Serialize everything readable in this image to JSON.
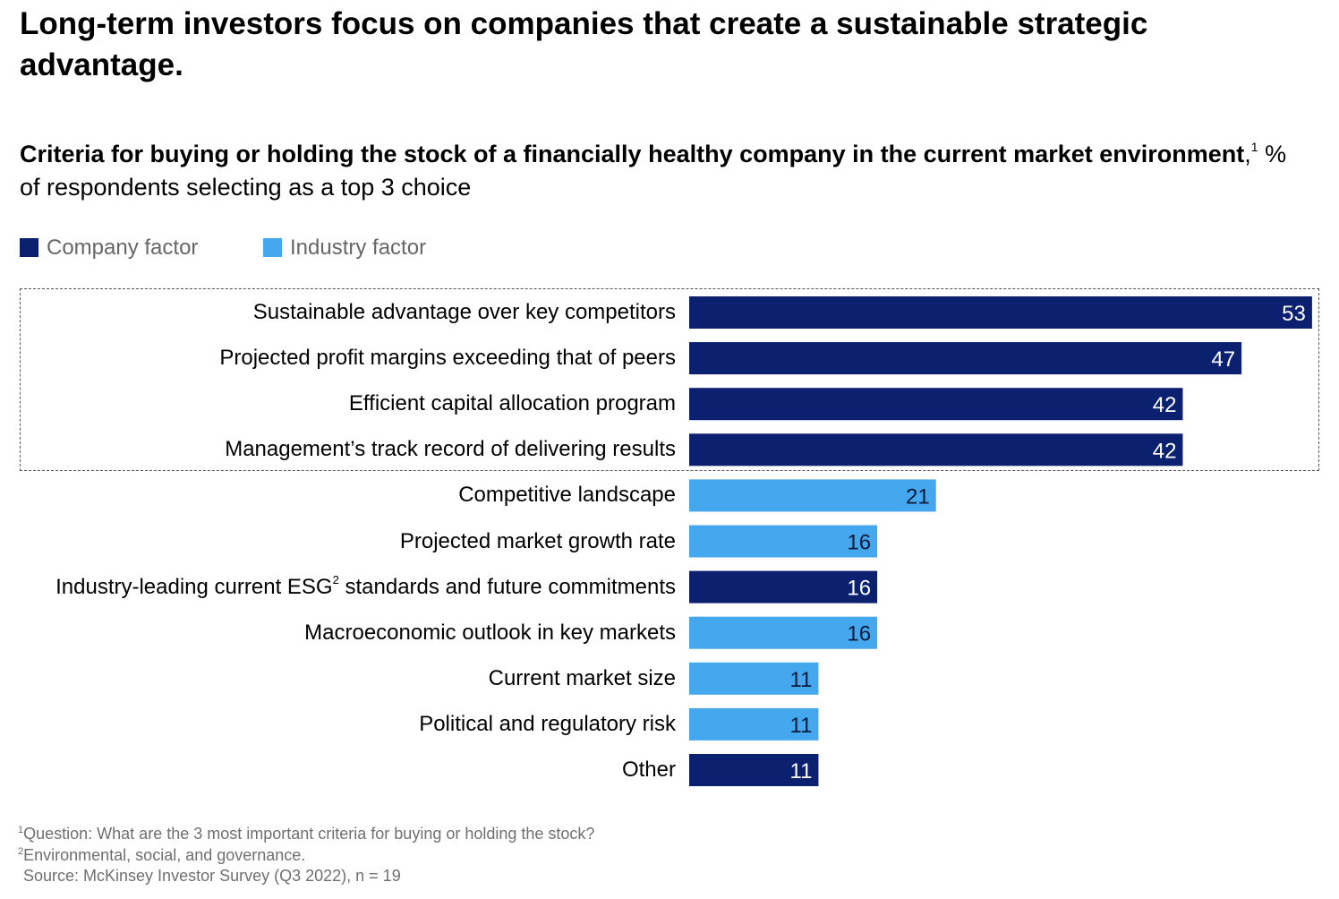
{
  "title": "Long-term investors focus on companies that create a sustainable strategic advantage.",
  "subtitle": {
    "bold": "Criteria for buying or holding the stock of a financially healthy company in the current market environment",
    "note_marker": "1",
    "rest": " % of respondents selecting as a top 3 choice"
  },
  "legend": [
    {
      "label": "Company factor",
      "color": "#0b2170"
    },
    {
      "label": "Industry factor",
      "color": "#45a8ee"
    }
  ],
  "chart_data": {
    "type": "bar",
    "orientation": "horizontal",
    "unit": "% of respondents selecting as a top 3 choice",
    "categories": [
      "Sustainable advantage over key competitors",
      "Projected profit margins exceeding that of peers",
      "Efficient capital allocation program",
      "Management’s track record of delivering results",
      "Competitive landscape",
      "Projected market growth rate",
      "Industry-leading current ESG standards and future commitments",
      "Macroeconomic outlook in key markets",
      "Current market size",
      "Political and regulatory risk",
      "Other"
    ],
    "values": [
      53,
      47,
      42,
      42,
      21,
      16,
      16,
      16,
      11,
      11,
      11
    ],
    "factor": [
      "Company factor",
      "Company factor",
      "Company factor",
      "Company factor",
      "Industry factor",
      "Industry factor",
      "Company factor",
      "Industry factor",
      "Industry factor",
      "Industry factor",
      "Company factor"
    ],
    "highlighted_top": 4,
    "label_superscripts": {
      "6": {
        "after": "Industry-leading current ESG",
        "marker": "2",
        "rest": " standards and future commitments"
      }
    },
    "data_labels": true,
    "grid": false
  },
  "footnotes": [
    {
      "marker": "1",
      "text": "Question: What are the 3 most important criteria for buying or holding the stock?"
    },
    {
      "marker": "2",
      "text": "Environmental, social, and governance."
    }
  ],
  "source": "Source: McKinsey Investor Survey (Q3 2022), n = 19"
}
